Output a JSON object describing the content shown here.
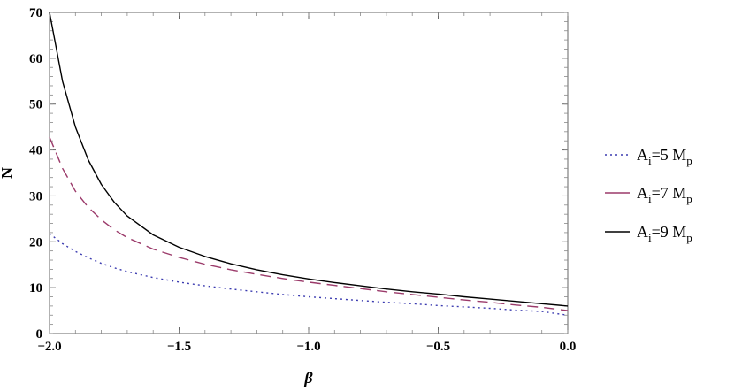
{
  "chart_data": {
    "type": "line",
    "xlabel": "β",
    "ylabel": "N",
    "xlim": [
      -2.0,
      0.0
    ],
    "ylim": [
      0,
      70
    ],
    "x_ticks": [
      -2.0,
      -1.5,
      -1.0,
      -0.5,
      0.0
    ],
    "x_tick_labels": [
      "−2.0",
      "−1.5",
      "−1.0",
      "−0.5",
      "0.0"
    ],
    "y_ticks": [
      0,
      10,
      20,
      30,
      40,
      50,
      60,
      70
    ],
    "y_tick_labels": [
      "0",
      "10",
      "20",
      "30",
      "40",
      "50",
      "60",
      "70"
    ],
    "grid": false,
    "legend_position": "right",
    "x": [
      -2.0,
      -1.95,
      -1.9,
      -1.85,
      -1.8,
      -1.75,
      -1.7,
      -1.6,
      -1.5,
      -1.4,
      -1.3,
      -1.2,
      -1.1,
      -1.0,
      -0.9,
      -0.8,
      -0.7,
      -0.6,
      -0.5,
      -0.4,
      -0.3,
      -0.2,
      -0.1,
      0.0
    ],
    "series": [
      {
        "name_main": "A",
        "name_sub": "i",
        "name_rest": "=5 M",
        "name_sub2": "p",
        "color": "#3b3bb0",
        "style": "dotted",
        "values": [
          21.8,
          19.6,
          17.9,
          16.5,
          15.3,
          14.3,
          13.5,
          12.2,
          11.2,
          10.4,
          9.7,
          9.1,
          8.5,
          8.0,
          7.6,
          7.2,
          6.8,
          6.5,
          6.1,
          5.8,
          5.5,
          5.1,
          4.8,
          4.0
        ]
      },
      {
        "name_main": "A",
        "name_sub": "i",
        "name_rest": "=7 M",
        "name_sub2": "p",
        "color": "#9b3a6a",
        "style": "dashed",
        "values": [
          42.8,
          36.0,
          31.0,
          27.5,
          24.8,
          22.6,
          20.9,
          18.4,
          16.6,
          15.1,
          13.9,
          12.9,
          12.0,
          11.2,
          10.5,
          9.8,
          9.1,
          8.5,
          7.9,
          7.3,
          6.8,
          6.2,
          5.7,
          5.0
        ]
      },
      {
        "name_main": "A",
        "name_sub": "i",
        "name_rest": "=9 M",
        "name_sub2": "p",
        "color": "#000000",
        "style": "solid",
        "values": [
          70.0,
          55.0,
          45.0,
          37.8,
          32.5,
          28.6,
          25.6,
          21.5,
          18.8,
          16.8,
          15.2,
          13.9,
          12.8,
          11.9,
          11.1,
          10.4,
          9.7,
          9.1,
          8.6,
          8.0,
          7.5,
          7.0,
          6.5,
          6.0
        ]
      }
    ]
  }
}
